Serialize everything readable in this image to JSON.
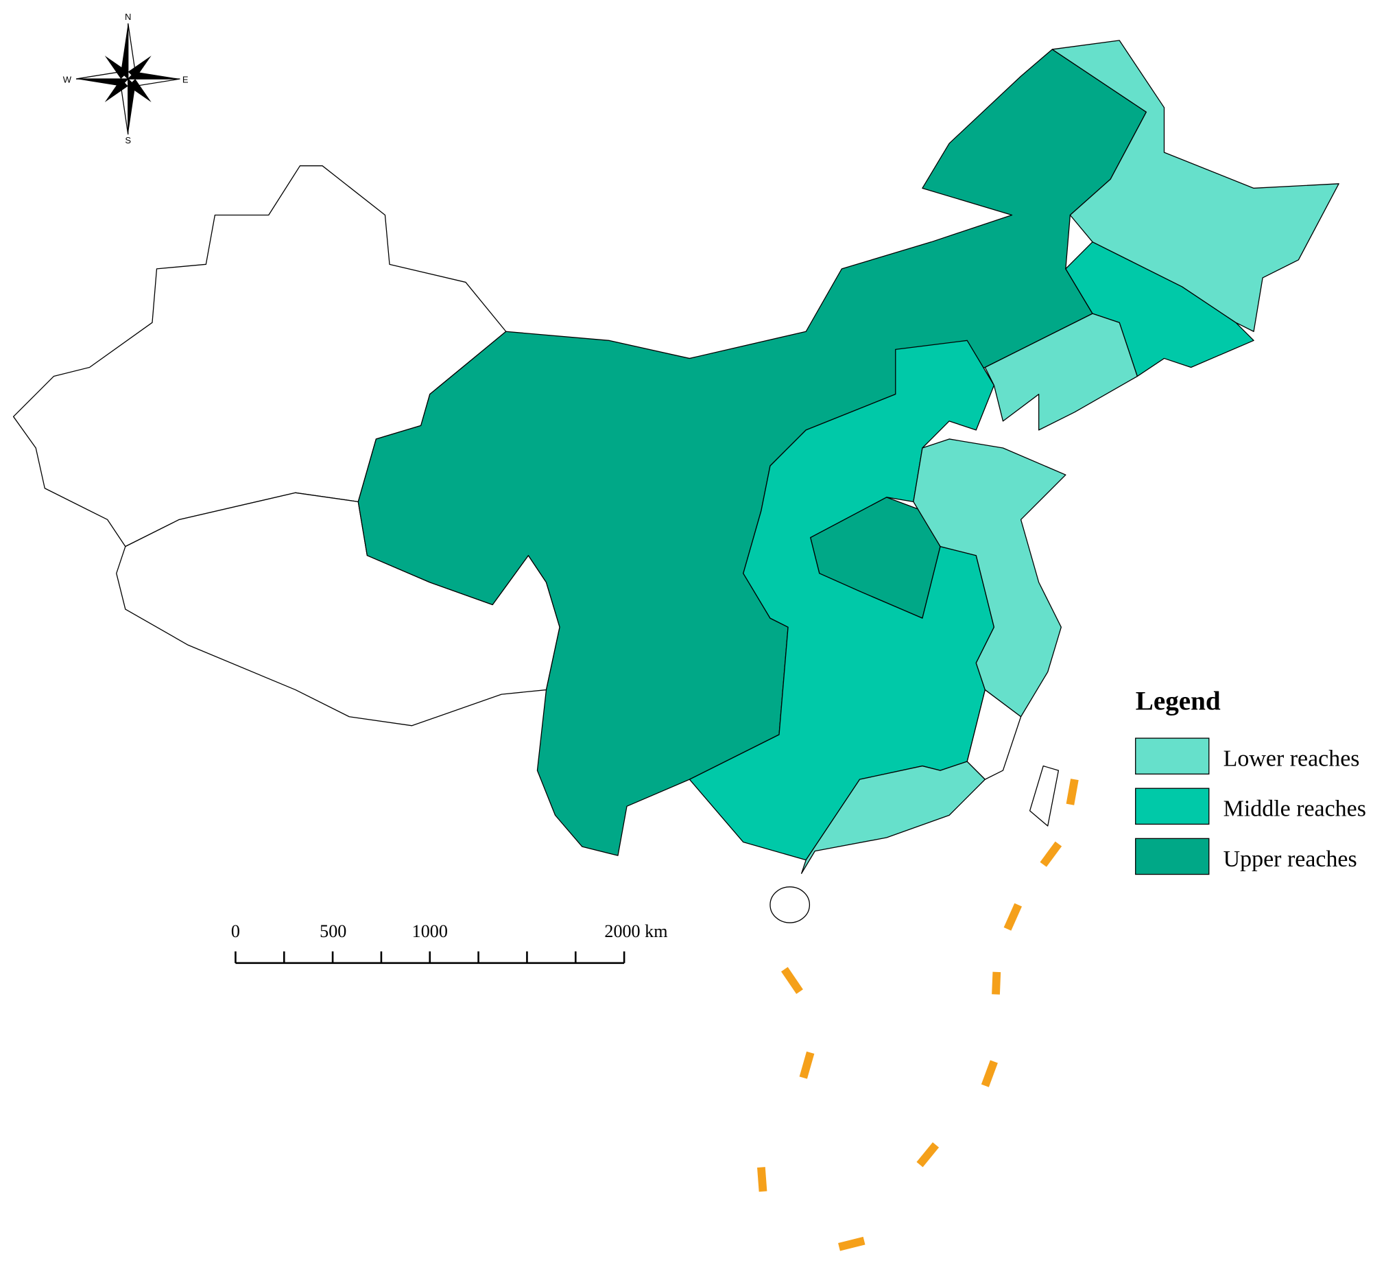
{
  "compass": {
    "north": "N",
    "east": "E",
    "south": "S",
    "west": "W"
  },
  "legend": {
    "title": "Legend",
    "items": [
      {
        "label": "Lower reaches",
        "color": "#66e0cb"
      },
      {
        "label": "Middle reaches",
        "color": "#00c9a8"
      },
      {
        "label": "Upper reaches",
        "color": "#00a887"
      }
    ]
  },
  "scale_bar": {
    "labels": [
      "0",
      "500",
      "1000",
      "2000 km"
    ]
  }
}
